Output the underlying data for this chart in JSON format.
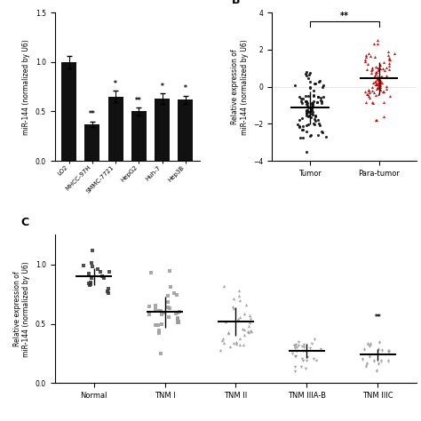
{
  "panel_A": {
    "categories": [
      "LO2",
      "MHCC-97H",
      "SMMC-7721",
      "HepG2",
      "Huh-7",
      "Hep3B"
    ],
    "values": [
      1.0,
      0.37,
      0.65,
      0.5,
      0.63,
      0.62
    ],
    "errors": [
      0.06,
      0.03,
      0.06,
      0.04,
      0.05,
      0.04
    ],
    "significance": [
      "",
      "**",
      "*",
      "**",
      "*",
      "*"
    ],
    "bar_color": "#111111",
    "ylabel": "miR-144 (normalized by U6)",
    "ylim": [
      0,
      1.5
    ],
    "yticks": [
      0.0,
      0.5,
      1.0,
      1.5
    ]
  },
  "panel_B": {
    "tumor_mean": -1.1,
    "tumor_std": 0.9,
    "tumor_n": 100,
    "paratumor_mean": 0.5,
    "paratumor_std": 0.85,
    "paratumor_n": 100,
    "tumor_color": "#111111",
    "paratumor_color": "#cc0000",
    "ylabel": "Relative expression of\nmiR-144 (normalized by U6)",
    "ylim": [
      -4,
      4
    ],
    "yticks": [
      -4,
      -2,
      0,
      2,
      4
    ],
    "categories": [
      "Tumor",
      "Para-tumor"
    ],
    "significance": "**"
  },
  "panel_C": {
    "groups": [
      "Normal",
      "TNM I",
      "TNM II",
      "TNM IIIA-B",
      "TNM IIIC"
    ],
    "means": [
      0.9,
      0.6,
      0.52,
      0.27,
      0.24
    ],
    "stds": [
      0.07,
      0.13,
      0.12,
      0.06,
      0.05
    ],
    "ns": [
      18,
      32,
      36,
      30,
      18
    ],
    "color": "#999999",
    "normal_color": "#333333",
    "ylabel": "Relative expression of\nmiR-144 (normalized by U6)",
    "ylim": [
      0.0,
      1.25
    ],
    "yticks": [
      0.0,
      0.5,
      1.0
    ]
  },
  "background_color": "#ffffff"
}
